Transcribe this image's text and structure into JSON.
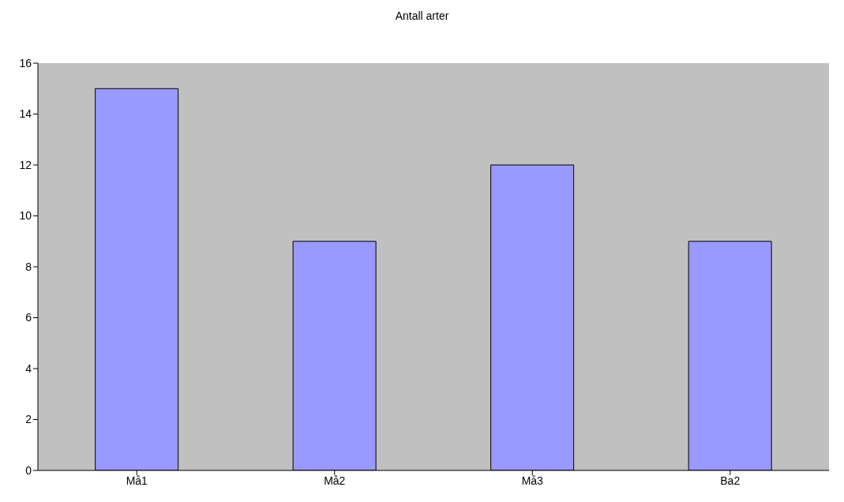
{
  "chart_data": {
    "type": "bar",
    "title": "Antall arter",
    "categories": [
      "Må1",
      "Må2",
      "Må3",
      "Ba2"
    ],
    "values": [
      15,
      9,
      12,
      9
    ],
    "color": "#9999ff",
    "ylim": [
      0,
      16
    ],
    "yticks": [
      0,
      2,
      4,
      6,
      8,
      10,
      12,
      14,
      16
    ],
    "grid": false,
    "legend": false
  }
}
